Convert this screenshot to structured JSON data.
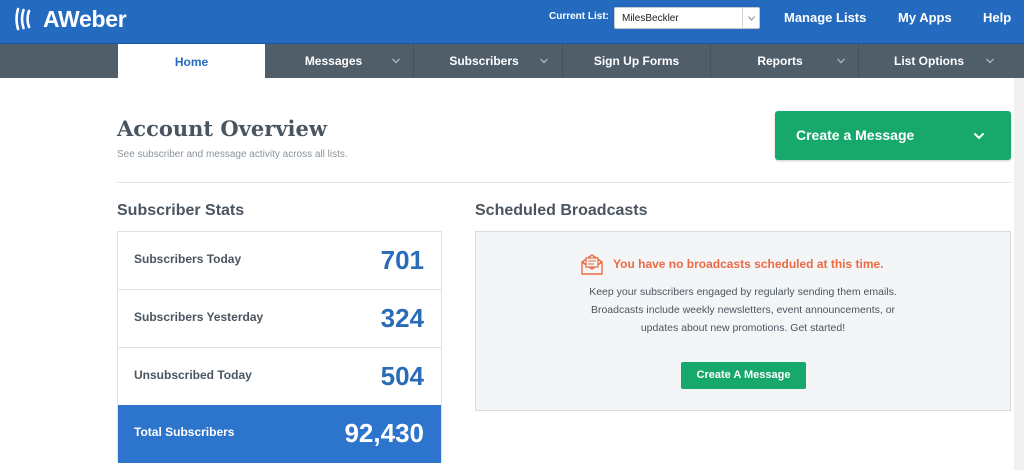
{
  "app": {
    "name": "AWeber",
    "logo_icon": "aweber-wave-logo"
  },
  "header": {
    "current_list_label": "Current List:",
    "current_list_value": "MilesBeckler",
    "links": [
      "Manage Lists",
      "My Apps",
      "Help"
    ]
  },
  "nav": {
    "tabs": [
      {
        "label": "Home",
        "active": true,
        "dropdown": false
      },
      {
        "label": "Messages",
        "dropdown": true
      },
      {
        "label": "Subscribers",
        "dropdown": true
      },
      {
        "label": "Sign Up Forms",
        "dropdown": false
      },
      {
        "label": "Reports",
        "dropdown": true
      },
      {
        "label": "List Options",
        "dropdown": true
      }
    ]
  },
  "overview": {
    "title": "Account Overview",
    "subtitle": "See subscriber and message activity across all lists.",
    "create_button": "Create a Message"
  },
  "stats": {
    "title": "Subscriber Stats",
    "rows": [
      {
        "label": "Subscribers Today",
        "value": "701"
      },
      {
        "label": "Subscribers Yesterday",
        "value": "324"
      },
      {
        "label": "Unsubscribed Today",
        "value": "504"
      },
      {
        "label": "Total Subscribers",
        "value": "92,430"
      }
    ]
  },
  "broadcasts": {
    "title": "Scheduled Broadcasts",
    "empty_headline": "You have no broadcasts scheduled at this time.",
    "description_lines": [
      "Keep your subscribers engaged by regularly sending them emails.",
      "Broadcasts include weekly newsletters, event announcements, or",
      "updates about new promotions. Get started!"
    ],
    "button": "Create A Message",
    "icon": "envelope-letter-icon"
  },
  "colors": {
    "header_blue": "#246bc0",
    "nav_gray": "#505e6a",
    "accent_green": "#17a86b",
    "stat_blue": "#2a6cb8",
    "total_row_blue": "#2d74cc",
    "alert_orange": "#ec6a44"
  }
}
